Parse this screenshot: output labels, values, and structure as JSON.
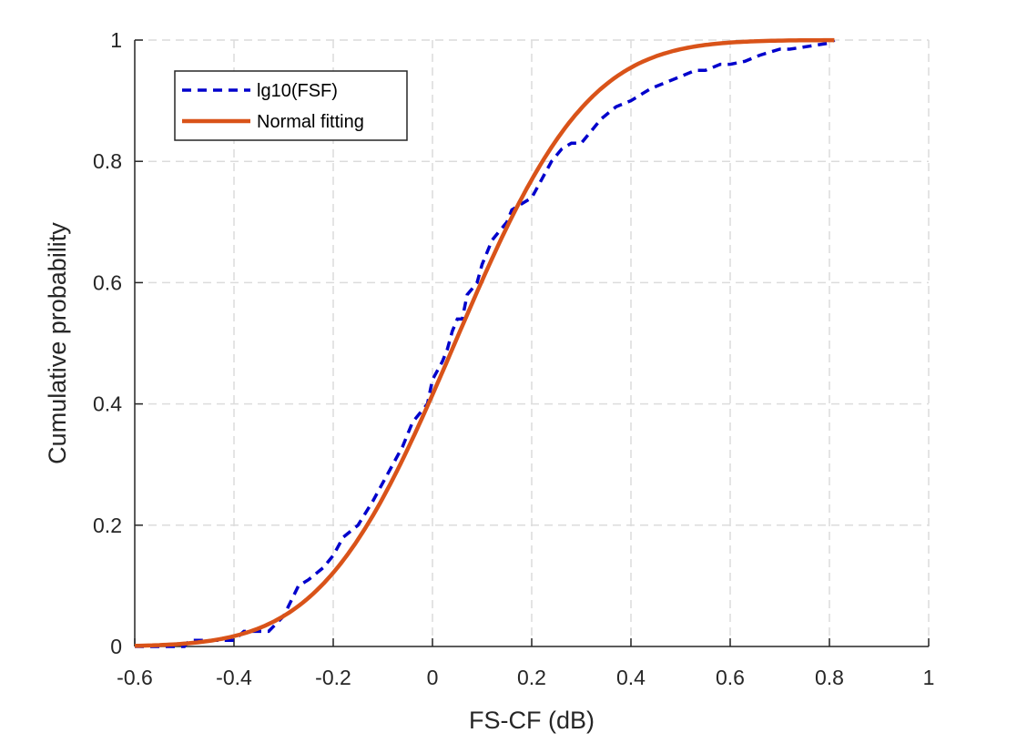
{
  "chart_data": {
    "type": "line",
    "xlabel": "FS-CF (dB)",
    "ylabel": "Cumulative probability",
    "xlim": [
      -0.6,
      1
    ],
    "ylim": [
      0,
      1
    ],
    "xticks": [
      -0.6,
      -0.4,
      -0.2,
      0,
      0.2,
      0.4,
      0.6,
      0.8,
      1
    ],
    "xtick_labels": [
      "-0.6",
      "-0.4",
      "-0.2",
      "0",
      "0.2",
      "0.4",
      "0.6",
      "0.8",
      "1"
    ],
    "yticks": [
      0,
      0.2,
      0.4,
      0.6,
      0.8,
      1
    ],
    "ytick_labels": [
      "0",
      "0.2",
      "0.4",
      "0.6",
      "0.8",
      "1"
    ],
    "grid": true,
    "legend_position": "top-left",
    "series": [
      {
        "name": "lg10(FSF)",
        "style": "dashed",
        "color": "#0000CC",
        "x": [
          -0.6,
          -0.5,
          -0.49,
          -0.4,
          -0.38,
          -0.33,
          -0.3,
          -0.27,
          -0.25,
          -0.22,
          -0.2,
          -0.18,
          -0.15,
          -0.12,
          -0.1,
          -0.08,
          -0.06,
          -0.05,
          -0.04,
          -0.02,
          -0.01,
          0.0,
          0.02,
          0.03,
          0.04,
          0.05,
          0.06,
          0.07,
          0.08,
          0.09,
          0.1,
          0.11,
          0.12,
          0.14,
          0.15,
          0.16,
          0.18,
          0.2,
          0.22,
          0.24,
          0.26,
          0.28,
          0.3,
          0.32,
          0.34,
          0.37,
          0.4,
          0.42,
          0.44,
          0.47,
          0.5,
          0.53,
          0.55,
          0.58,
          0.6,
          0.63,
          0.66,
          0.7,
          0.72,
          0.76,
          0.8,
          0.81
        ],
        "y": [
          0.0,
          0.0,
          0.01,
          0.01,
          0.025,
          0.025,
          0.05,
          0.1,
          0.11,
          0.13,
          0.15,
          0.18,
          0.2,
          0.24,
          0.27,
          0.3,
          0.33,
          0.35,
          0.37,
          0.39,
          0.4,
          0.44,
          0.47,
          0.49,
          0.52,
          0.54,
          0.54,
          0.58,
          0.59,
          0.6,
          0.63,
          0.65,
          0.67,
          0.69,
          0.7,
          0.72,
          0.73,
          0.74,
          0.77,
          0.8,
          0.82,
          0.83,
          0.83,
          0.85,
          0.87,
          0.89,
          0.9,
          0.91,
          0.92,
          0.93,
          0.94,
          0.95,
          0.95,
          0.96,
          0.96,
          0.965,
          0.975,
          0.985,
          0.985,
          0.99,
          0.995,
          1.0
        ]
      },
      {
        "name": "Normal fitting",
        "style": "solid",
        "color": "#D95319",
        "mean": 0.045,
        "std": 0.21,
        "x_range": [
          -0.6,
          0.81
        ]
      }
    ]
  }
}
